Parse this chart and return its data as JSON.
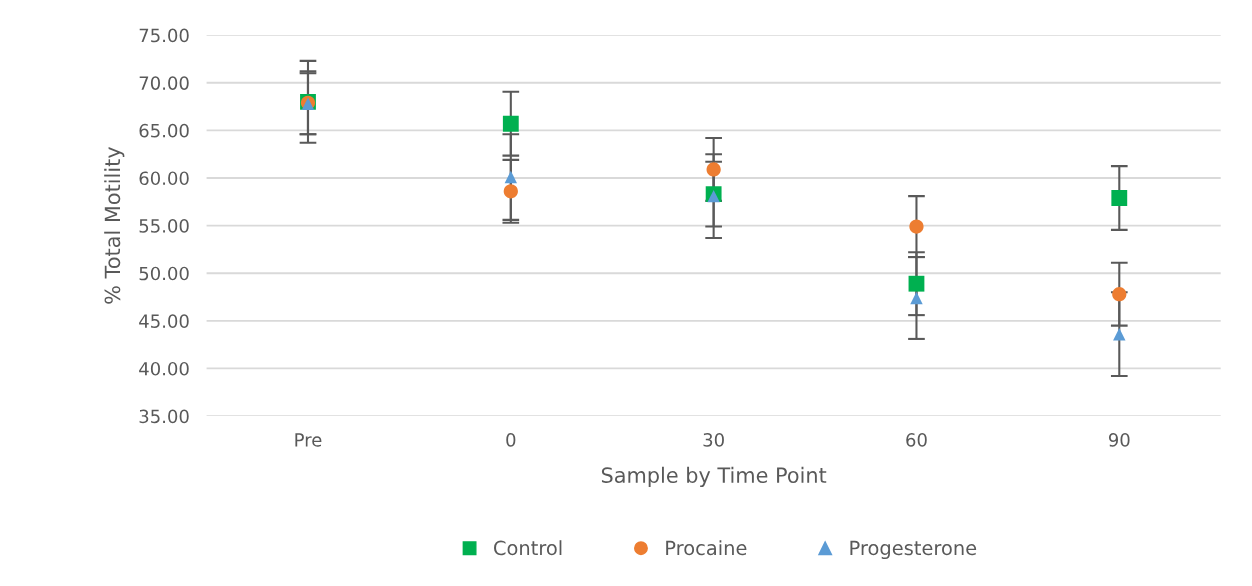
{
  "chart_data": {
    "type": "scatter",
    "xlabel": "Sample by Time Point",
    "ylabel": "% Total Motility",
    "categories": [
      "Pre",
      "0",
      "30",
      "60",
      "90"
    ],
    "series": [
      {
        "name": "Control",
        "color": "#00b050",
        "marker": "square",
        "values": [
          68.0,
          65.7,
          58.3,
          48.9,
          57.9
        ],
        "errors": [
          4.3,
          3.35,
          3.4,
          3.3,
          3.35
        ]
      },
      {
        "name": "Procaine",
        "color": "#ed7d31",
        "marker": "circle",
        "values": [
          67.9,
          58.6,
          60.9,
          54.9,
          47.8
        ],
        "errors": [
          3.3,
          3.3,
          3.3,
          3.2,
          3.3
        ]
      },
      {
        "name": "Progesterone",
        "color": "#5b9bd5",
        "marker": "triangle",
        "values": [
          67.8,
          60.1,
          58.1,
          47.4,
          43.6
        ],
        "errors": [
          3.2,
          4.5,
          4.4,
          4.3,
          4.4
        ]
      }
    ],
    "ylim": [
      35,
      75
    ],
    "yticks": [
      {
        "value": 35,
        "label": "35.00"
      },
      {
        "value": 40,
        "label": "40.00"
      },
      {
        "value": 45,
        "label": "45.00"
      },
      {
        "value": 50,
        "label": "50.00"
      },
      {
        "value": 55,
        "label": "55.00"
      },
      {
        "value": 60,
        "label": "60.00"
      },
      {
        "value": 65,
        "label": "65.00"
      },
      {
        "value": 70,
        "label": "70.00"
      },
      {
        "value": 75,
        "label": "75.00"
      }
    ],
    "grid": "y",
    "legend": "bottom"
  }
}
